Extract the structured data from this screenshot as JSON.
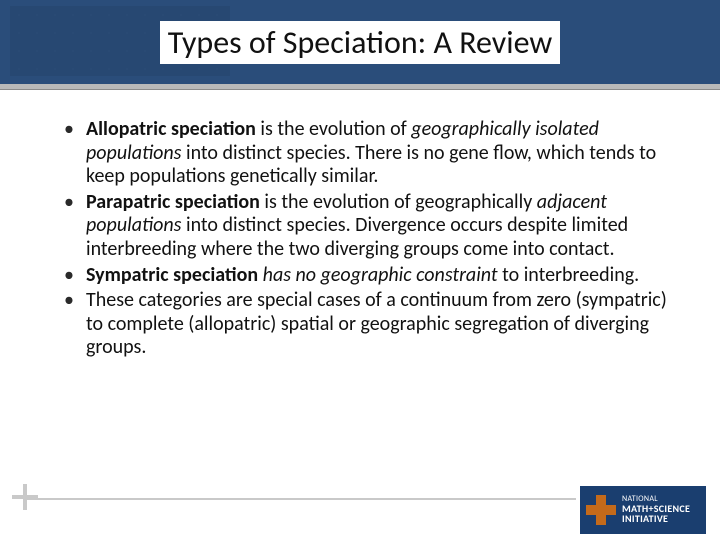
{
  "title": "Types of Speciation: A Review",
  "colors": {
    "header_band": "#2a4d7a",
    "logo_bg": "#1a3e6f",
    "divider": "#b9b9b9",
    "footer_rule": "#c9c9c9",
    "text": "#111111"
  },
  "bullets": [
    {
      "segments": [
        {
          "text": "Allopatric speciation",
          "bold": true
        },
        {
          "text": " is the evolution of "
        },
        {
          "text": "geographically isolated populations",
          "italic": true
        },
        {
          "text": " into distinct species. There is no gene flow, which tends to keep populations genetically similar."
        }
      ]
    },
    {
      "segments": [
        {
          "text": "Parapatric speciation",
          "bold": true
        },
        {
          "text": " is the evolution of geographically "
        },
        {
          "text": "adjacent populations",
          "italic": true
        },
        {
          "text": " into distinct species. Divergence occurs despite limited interbreeding where the two diverging groups come into contact."
        }
      ]
    },
    {
      "segments": [
        {
          "text": "Sympatric speciation",
          "bold": true
        },
        {
          "text": " "
        },
        {
          "text": "has no geographic constraint",
          "italic": true
        },
        {
          "text": " to interbreeding."
        }
      ]
    },
    {
      "segments": [
        {
          "text": "These categories are special cases of a continuum from zero (sympatric) to complete (allopatric) spatial or geographic segregation of diverging groups."
        }
      ]
    }
  ],
  "logo": {
    "small": "NATIONAL",
    "line1": "MATH+SCIENCE",
    "line2": "INITIATIVE"
  }
}
